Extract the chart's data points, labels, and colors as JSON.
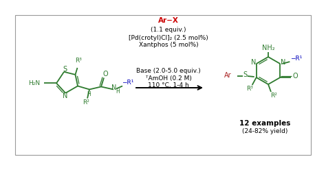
{
  "bg_color": "#ffffff",
  "border_color": "#999999",
  "green": "#2d7a2d",
  "red": "#cc0000",
  "blue": "#0000bb",
  "black": "#000000",
  "dark_red": "#aa2222",
  "reagent_lines": [
    {
      "text": "Ar−X",
      "color": "#cc0000",
      "fontsize": 7.5,
      "bold": true
    },
    {
      "text": "(1.1 equiv.)",
      "color": "#000000",
      "fontsize": 6.5,
      "bold": false
    },
    {
      "text": "[Pd(crotyl)Cl]₂ (2.5 mol%)",
      "color": "#000000",
      "fontsize": 6.5,
      "bold": false
    },
    {
      "text": "Xantphos (5 mol%)",
      "color": "#000000",
      "fontsize": 6.5,
      "bold": false
    },
    {
      "text": "Base (2.0-5.0 equiv.)",
      "color": "#000000",
      "fontsize": 6.5,
      "bold": false
    },
    {
      "text": "ᵀAmOH (0.2 M)",
      "color": "#000000",
      "fontsize": 6.5,
      "bold": false
    },
    {
      "text": "110 °C, 1-4 h",
      "color": "#000000",
      "fontsize": 6.5,
      "bold": false
    }
  ]
}
